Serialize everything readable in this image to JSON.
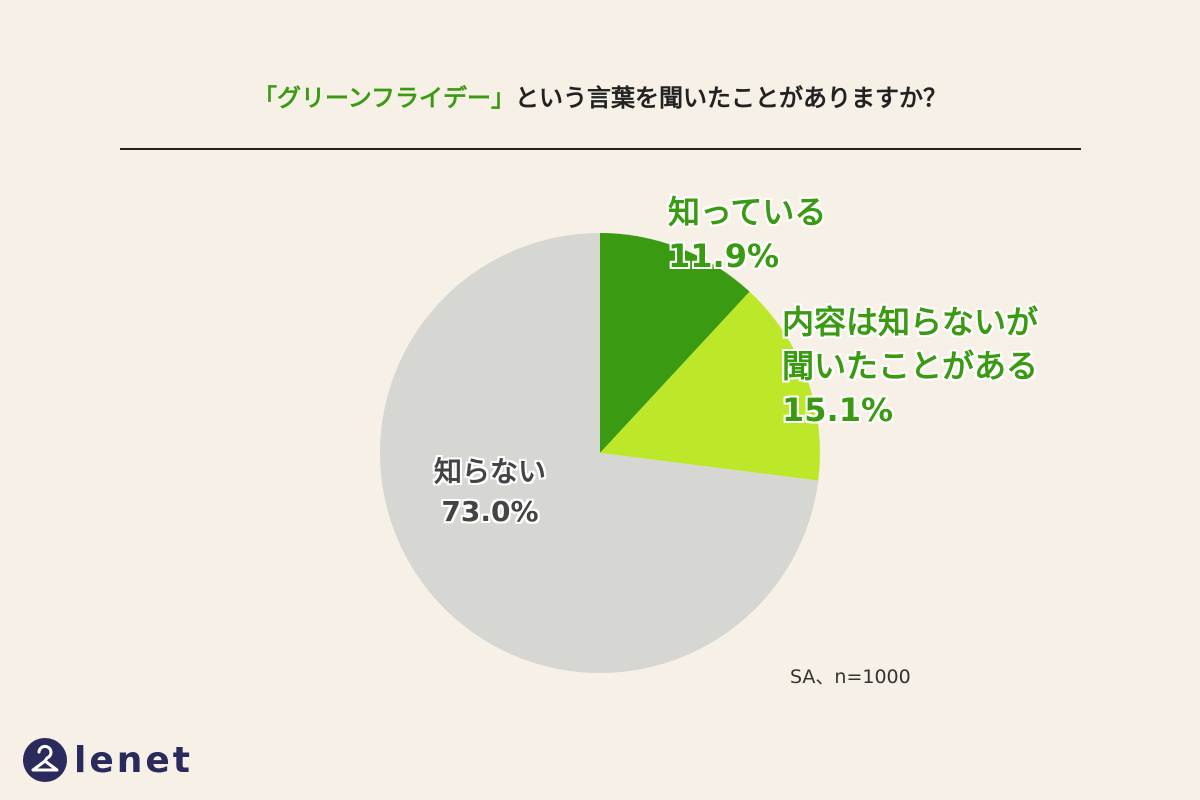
{
  "header": {
    "title_highlight": "「グリーンフライデー」",
    "title_rest": "という言葉を聞いたことがありますか？"
  },
  "chart_data": {
    "type": "pie",
    "start": "top",
    "direction": "clockwise",
    "slices": [
      {
        "label_lines": [
          "知っている"
        ],
        "value": 11.9,
        "value_label": "11.9%",
        "color": "#3a9a12"
      },
      {
        "label_lines": [
          "内容は知らないが",
          "聞いたことがある"
        ],
        "value": 15.1,
        "value_label": "15.1%",
        "color": "#bde82a"
      },
      {
        "label_lines": [
          "知らない"
        ],
        "value": 73.0,
        "value_label": "73.0%",
        "color": "#d6d6d2"
      }
    ]
  },
  "note": "SA、n=1000",
  "logo": {
    "text": "lenet",
    "color": "#2a2a5c"
  }
}
